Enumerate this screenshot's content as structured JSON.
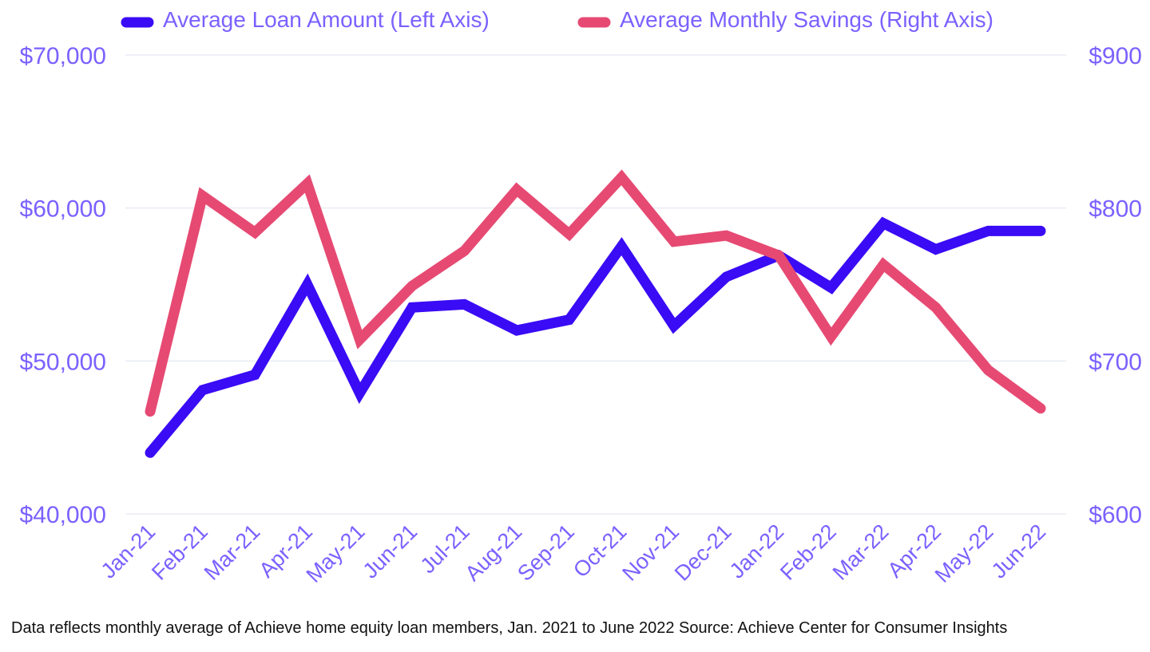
{
  "chart_data": {
    "type": "line",
    "categories": [
      "Jan-21",
      "Feb-21",
      "Mar-21",
      "Apr-21",
      "May-21",
      "Jun-21",
      "Jul-21",
      "Aug-21",
      "Sep-21",
      "Oct-21",
      "Nov-21",
      "Dec-21",
      "Jan-22",
      "Feb-22",
      "Mar-22",
      "Apr-22",
      "May-22",
      "Jun-22"
    ],
    "series": [
      {
        "name": "Average Loan Amount (Left Axis)",
        "axis": "left",
        "color": "#3a0bf5",
        "values": [
          44000,
          48100,
          49100,
          55000,
          47900,
          53500,
          53700,
          52000,
          52700,
          57500,
          52300,
          55500,
          56900,
          54800,
          59000,
          57300,
          58500,
          58500
        ]
      },
      {
        "name": "Average Monthly Savings (Right Axis)",
        "axis": "right",
        "color": "#e64a73",
        "values": [
          667,
          808,
          784,
          816,
          714,
          749,
          772,
          812,
          783,
          820,
          778,
          782,
          769,
          716,
          763,
          735,
          694,
          669
        ]
      }
    ],
    "y_left": {
      "min": 40000,
      "max": 70000,
      "ticks": [
        "$40,000",
        "$50,000",
        "$60,000",
        "$70,000"
      ]
    },
    "y_right": {
      "min": 600,
      "max": 900,
      "ticks": [
        "$600",
        "$700",
        "$800",
        "$900"
      ]
    },
    "grid": true,
    "legend_position": "top"
  },
  "caption": "Data reflects monthly average of Achieve home equity loan members, Jan. 2021 to June 2022 Source: Achieve Center for Consumer Insights"
}
